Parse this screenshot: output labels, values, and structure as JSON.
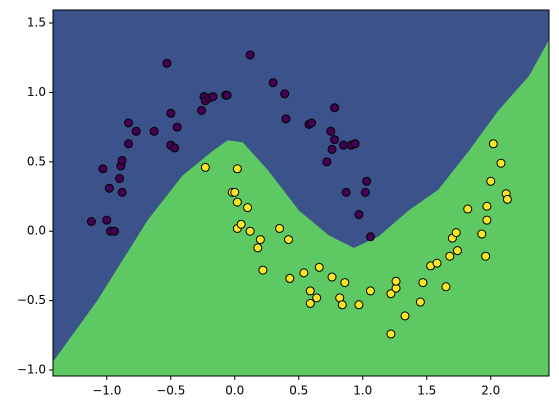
{
  "chart_data": {
    "type": "scatter",
    "xlim": [
      -1.42,
      2.455
    ],
    "ylim": [
      -1.043,
      1.594
    ],
    "xticks": [
      {
        "value": -1,
        "label": "−1.0"
      },
      {
        "value": -0.5,
        "label": "−0.5"
      },
      {
        "value": 0,
        "label": "0.0"
      },
      {
        "value": 0.5,
        "label": "0.5"
      },
      {
        "value": 1,
        "label": "1.0"
      },
      {
        "value": 1.5,
        "label": "1.5"
      },
      {
        "value": 2,
        "label": "2.0"
      }
    ],
    "yticks": [
      {
        "value": -1,
        "label": "−1.0"
      },
      {
        "value": -0.5,
        "label": "−0.5"
      },
      {
        "value": 0,
        "label": "0.0"
      },
      {
        "value": 0.5,
        "label": "0.5"
      },
      {
        "value": 1,
        "label": "1.0"
      },
      {
        "value": 1.5,
        "label": "1.5"
      }
    ],
    "regions": {
      "upper_color": "#3b528b",
      "lower_color": "#5ec962",
      "boundary_x": [
        -1.42,
        -1.075,
        -0.68,
        -0.41,
        -0.17,
        -0.055,
        0.063,
        0.26,
        0.5,
        0.735,
        0.93,
        1.12,
        1.36,
        1.59,
        1.83,
        2.06,
        2.3,
        2.455
      ],
      "boundary_y": [
        -0.94,
        -0.5,
        0.08,
        0.4,
        0.58,
        0.656,
        0.64,
        0.44,
        0.15,
        -0.03,
        -0.12,
        -0.04,
        0.15,
        0.3,
        0.58,
        0.87,
        1.12,
        1.38
      ]
    },
    "series": [
      {
        "color": "#440154",
        "x": [
          -1.12,
          -1.03,
          -1.0,
          -0.98,
          -0.97,
          -0.94,
          -0.9,
          -0.89,
          -0.88,
          -0.88,
          -0.83,
          -0.83,
          -0.77,
          -0.63,
          -0.53,
          -0.5,
          -0.5,
          -0.47,
          -0.45,
          -0.26,
          -0.24,
          -0.23,
          -0.2,
          -0.17,
          -0.07,
          -0.06,
          0.12,
          0.3,
          0.39,
          0.4,
          0.58,
          0.6,
          0.75,
          0.78,
          0.72,
          0.76,
          0.78,
          0.85,
          0.87,
          0.91,
          0.94,
          0.97,
          1.02,
          1.03,
          1.06
        ],
        "values": [
          0.07,
          0.45,
          0.08,
          0.31,
          0.0,
          0.0,
          0.38,
          0.47,
          0.51,
          0.28,
          0.63,
          0.78,
          0.72,
          0.72,
          1.21,
          0.62,
          0.85,
          0.6,
          0.75,
          0.87,
          0.97,
          0.94,
          0.96,
          0.97,
          0.98,
          0.98,
          1.27,
          1.07,
          0.99,
          0.81,
          0.77,
          0.78,
          0.72,
          0.89,
          0.5,
          0.59,
          0.66,
          0.62,
          0.28,
          0.62,
          0.63,
          0.12,
          0.28,
          0.36,
          -0.04
        ]
      },
      {
        "color": "#fde725",
        "x": [
          -0.23,
          0.02,
          -0.02,
          0.0,
          0.02,
          0.02,
          0.05,
          0.1,
          0.12,
          0.18,
          0.2,
          0.22,
          0.35,
          0.42,
          0.43,
          0.54,
          0.59,
          0.59,
          0.64,
          0.66,
          0.76,
          0.82,
          0.84,
          0.86,
          0.97,
          1.06,
          1.22,
          1.22,
          1.26,
          1.26,
          1.33,
          1.45,
          1.47,
          1.53,
          1.58,
          1.65,
          1.68,
          1.7,
          1.73,
          1.74,
          1.82,
          1.93,
          1.96,
          1.97,
          1.97,
          2.0,
          2.02,
          2.08,
          2.12,
          2.13
        ],
        "values": [
          0.46,
          0.45,
          0.28,
          0.28,
          0.21,
          0.02,
          0.05,
          0.17,
          0.0,
          -0.12,
          -0.06,
          -0.28,
          0.02,
          -0.06,
          -0.34,
          -0.3,
          -0.43,
          -0.52,
          -0.48,
          -0.26,
          -0.33,
          -0.48,
          -0.53,
          -0.37,
          -0.53,
          -0.43,
          -0.45,
          -0.74,
          -0.41,
          -0.36,
          -0.61,
          -0.51,
          -0.37,
          -0.25,
          -0.23,
          -0.4,
          -0.18,
          -0.05,
          -0.01,
          -0.14,
          0.16,
          -0.02,
          -0.18,
          0.18,
          0.08,
          0.36,
          0.63,
          0.49,
          0.27,
          0.23
        ]
      }
    ]
  }
}
